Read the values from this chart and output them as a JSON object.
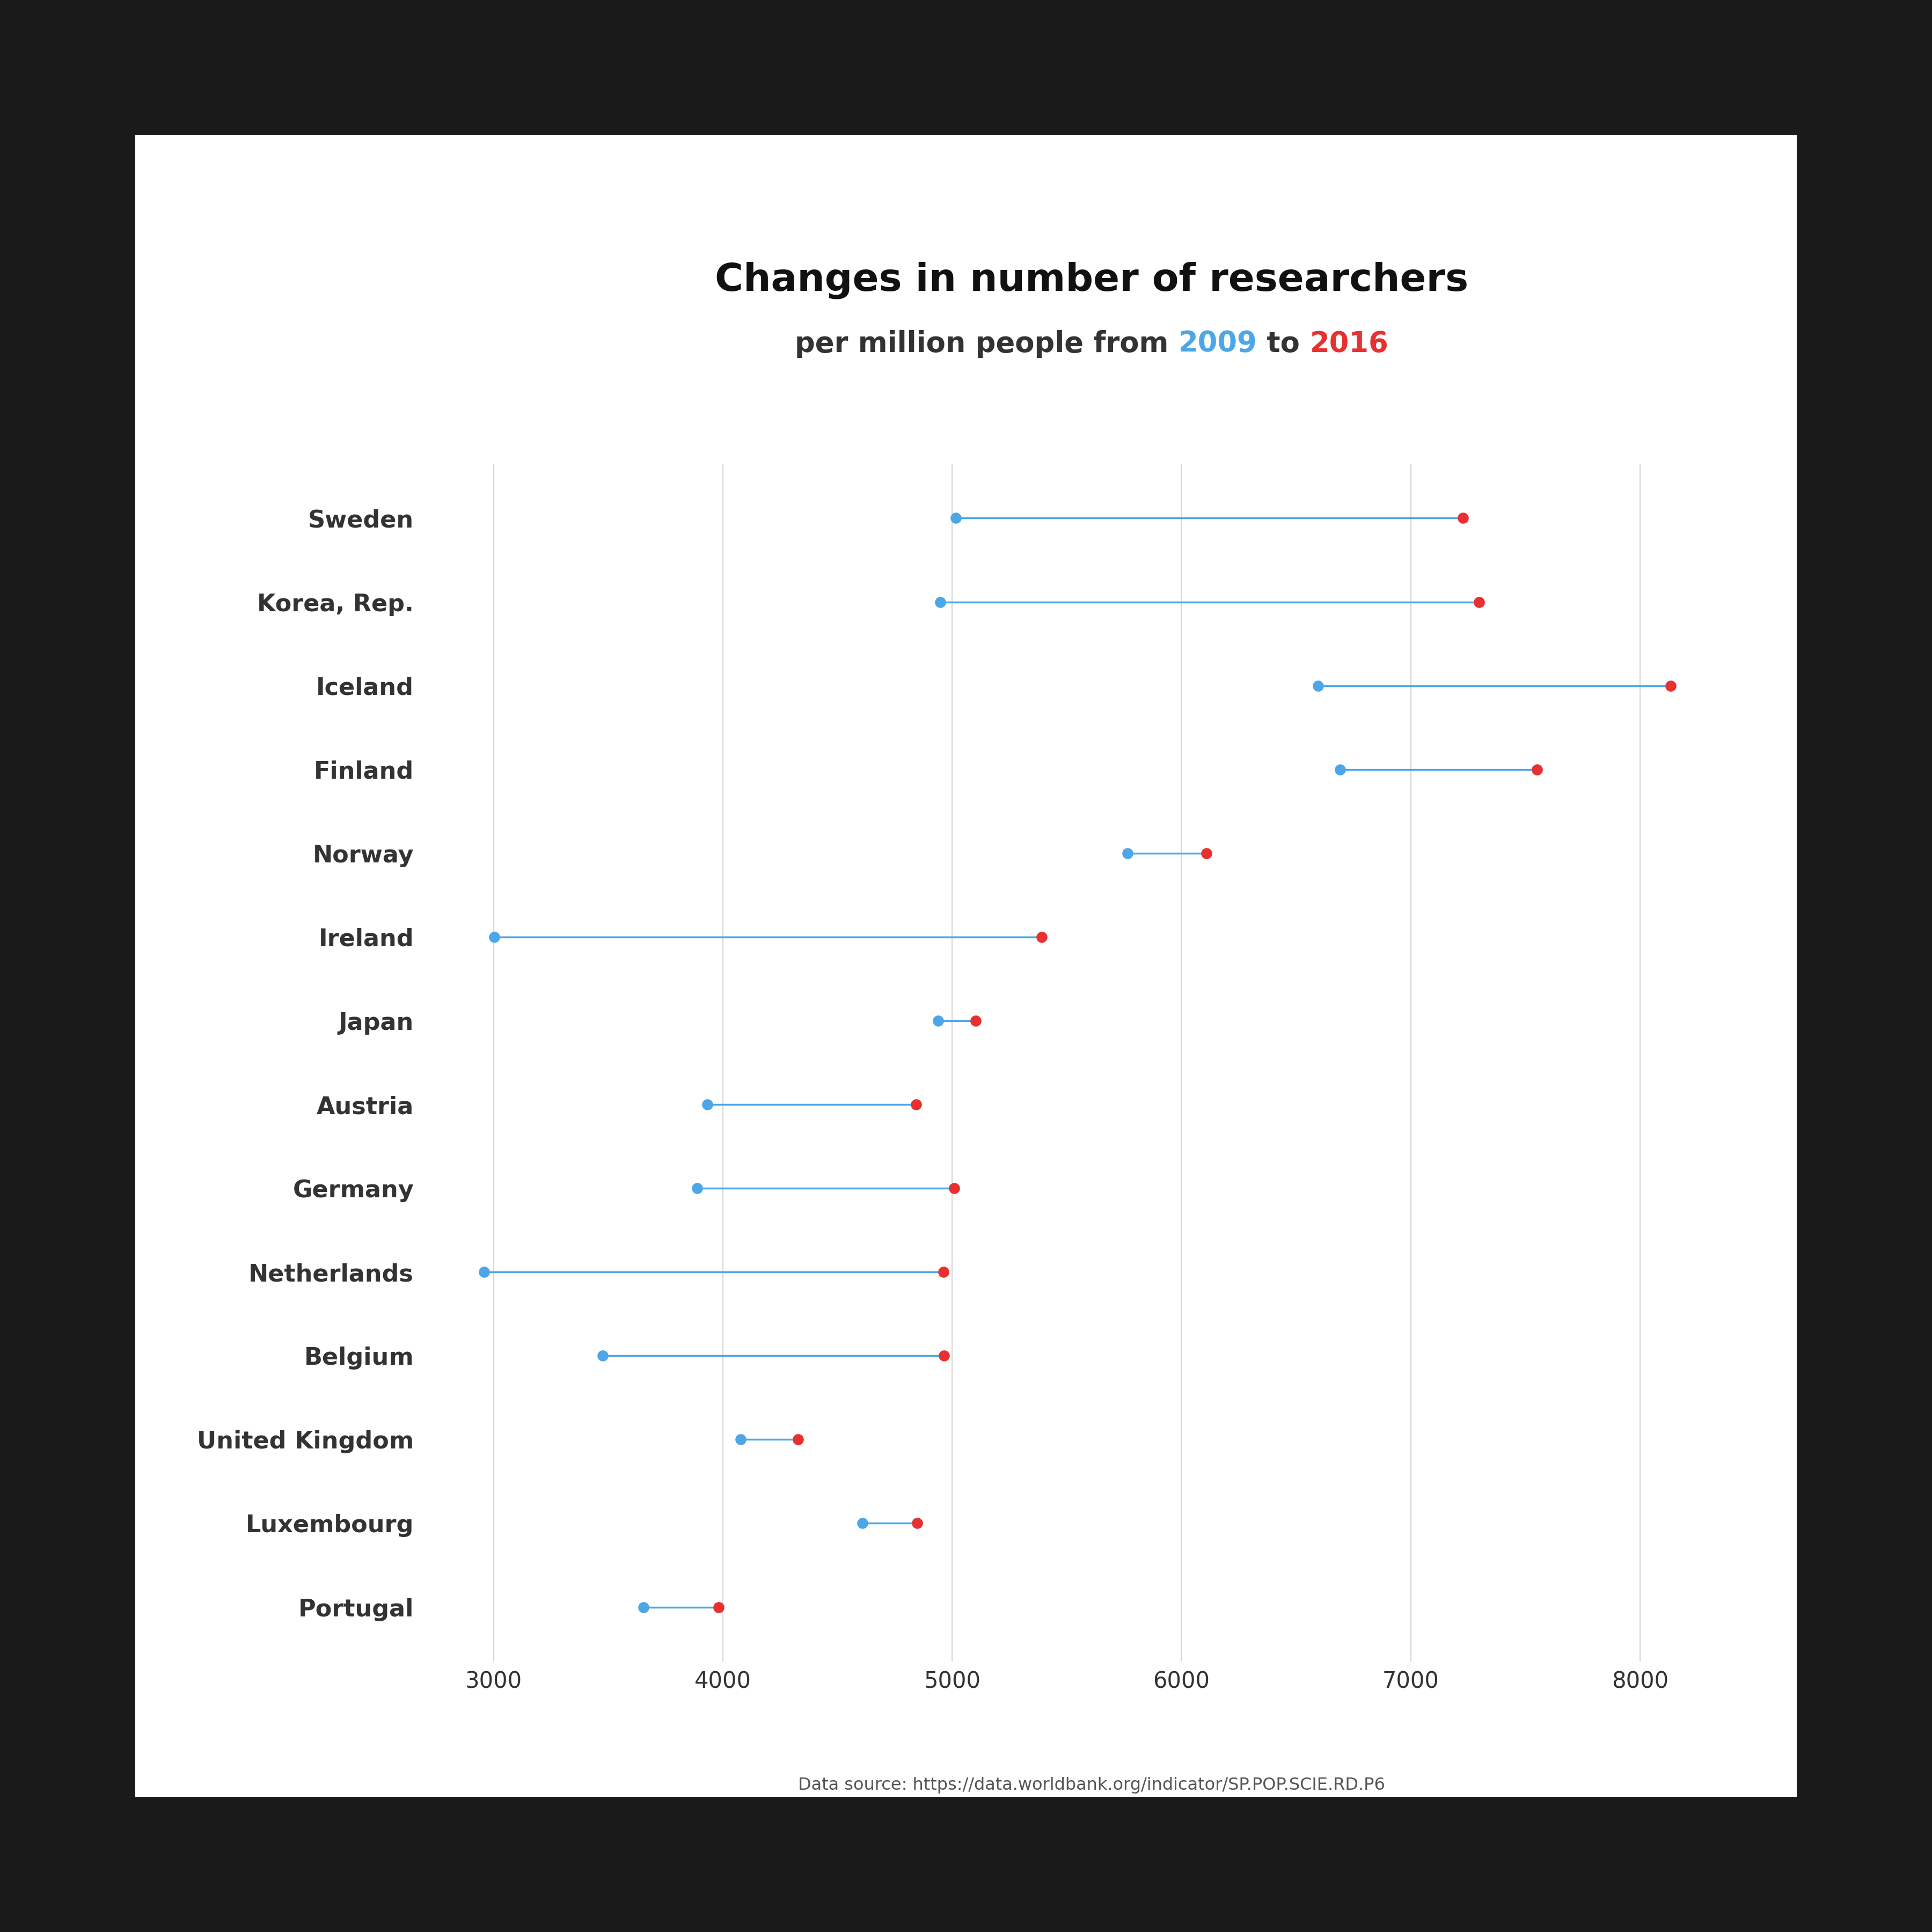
{
  "title_line1": "Changes in number of researchers",
  "color_2009": "#4da6e8",
  "color_2016": "#e83030",
  "color_line": "#4da6e8",
  "datasource": "Data source: https://data.worldbank.org/indicator/SP.POP.SCIE.RD.P6",
  "countries": [
    "Sweden",
    "Korea, Rep.",
    "Iceland",
    "Finland",
    "Norway",
    "Ireland",
    "Japan",
    "Austria",
    "Germany",
    "Netherlands",
    "Belgium",
    "United Kingdom",
    "Luxembourg",
    "Portugal"
  ],
  "values_2009": [
    5016,
    4948,
    6597,
    6693,
    5765,
    3002,
    4939,
    3932,
    3887,
    2958,
    3474,
    4076,
    4607,
    3652
  ],
  "values_2016": [
    7228,
    7298,
    8133,
    7550,
    6108,
    5389,
    5101,
    4843,
    5009,
    4961,
    4963,
    4327,
    4847,
    3981
  ],
  "xlim": [
    2700,
    8600
  ],
  "xticks": [
    3000,
    4000,
    5000,
    6000,
    7000,
    8000
  ],
  "background_color": "#ffffff",
  "outer_background": "#1a1a1a",
  "grid_color": "#cccccc",
  "label_color": "#333333",
  "title_fontsize": 52,
  "subtitle_fontsize": 38,
  "tick_fontsize": 30,
  "label_fontsize": 32,
  "dot_size": 220,
  "line_width": 2.5,
  "source_fontsize": 23
}
